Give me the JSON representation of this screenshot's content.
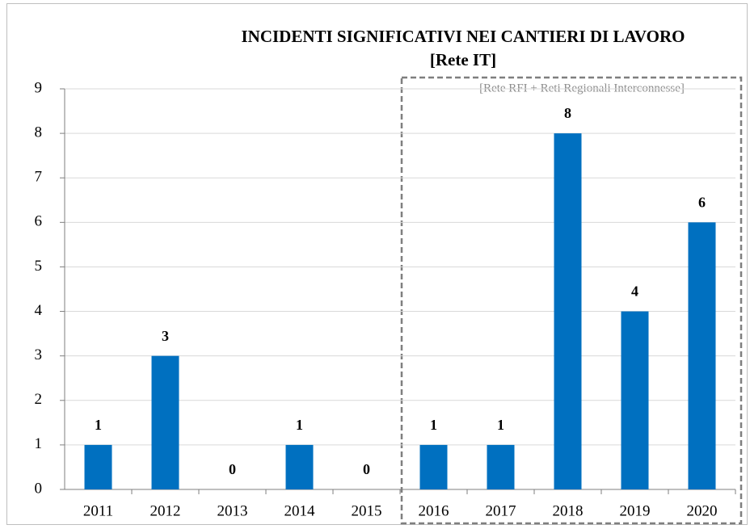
{
  "chart_data": {
    "type": "bar",
    "title": "INCIDENTI SIGNIFICATIVI NEI CANTIERI DI LAVORO",
    "subtitle": "[Rete IT]",
    "annotation": "[Rete RFI + Reti Regionali Interconnesse]",
    "categories": [
      "2011",
      "2012",
      "2013",
      "2014",
      "2015",
      "2016",
      "2017",
      "2018",
      "2019",
      "2020"
    ],
    "values": [
      1,
      3,
      0,
      1,
      0,
      1,
      1,
      8,
      4,
      6
    ],
    "color": "#0070c0",
    "ylim": [
      0,
      9
    ],
    "yticks": [
      0,
      1,
      2,
      3,
      4,
      5,
      6,
      7,
      8,
      9
    ],
    "grid": true
  }
}
